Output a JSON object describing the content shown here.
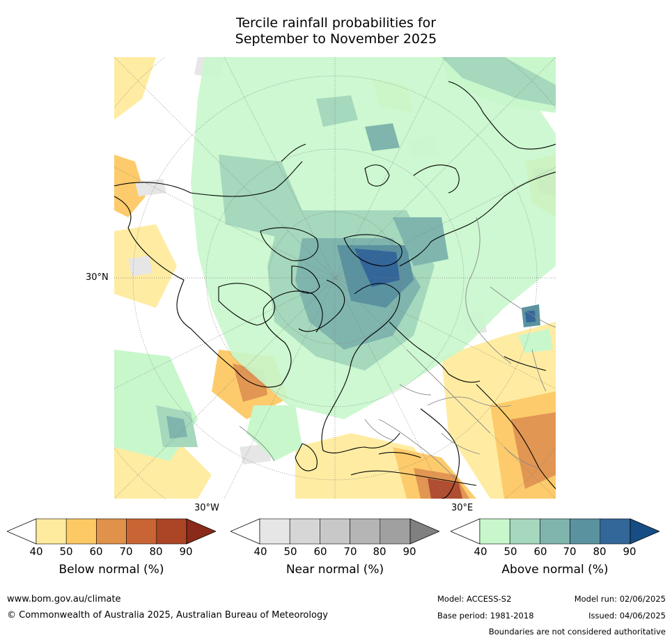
{
  "title": {
    "line1": "Tercile rainfall probabilities for",
    "line2": "September to November 2025"
  },
  "map": {
    "lat_label": "30°N",
    "lon_label_west": "30°W",
    "lon_label_east": "30°E"
  },
  "colorbars": [
    {
      "id": "below",
      "title": "Below normal (%)",
      "ticks": [
        "40",
        "50",
        "60",
        "70",
        "80",
        "90"
      ],
      "colors": [
        "#ffffff",
        "#ffeb9e",
        "#fdc964",
        "#e0914a",
        "#c96534",
        "#ab4526",
        "#8a2a1a"
      ]
    },
    {
      "id": "near",
      "title": "Near normal (%)",
      "ticks": [
        "40",
        "50",
        "60",
        "70",
        "80",
        "90"
      ],
      "colors": [
        "#ffffff",
        "#e6e6e6",
        "#d6d6d6",
        "#c8c8c8",
        "#b5b5b5",
        "#a0a0a0",
        "#808080"
      ]
    },
    {
      "id": "above",
      "title": "Above normal (%)",
      "ticks": [
        "40",
        "50",
        "60",
        "70",
        "80",
        "90"
      ],
      "colors": [
        "#ffffff",
        "#c8f7cc",
        "#a5d8bc",
        "#7fb5ad",
        "#5a92a0",
        "#336699",
        "#164d84"
      ]
    }
  ],
  "footer": {
    "website": "www.bom.gov.au/climate",
    "copyright": "© Commonwealth of Australia 2025, Australian Bureau of Meteorology",
    "model": "Model: ACCESS-S2",
    "model_run": "Model run: 02/06/2025",
    "base_period": "Base period: 1981-2018",
    "issued": "Issued: 04/06/2025",
    "boundaries_note": "Boundaries are not considered authoritative"
  }
}
